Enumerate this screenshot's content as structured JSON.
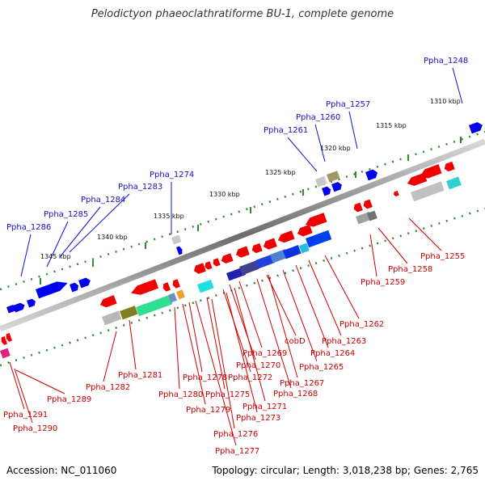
{
  "title": "Pelodictyon phaeoclathratiforme BU-1, complete genome",
  "accession_line": "Accession: NC_011060",
  "topology_line": "Topology: circular; Length: 3,018,238 bp; Genes: 2,765",
  "colors": {
    "backbone": "#7a7a7a",
    "dots": "#2e8b2e",
    "forward_label": "#1010cc",
    "reverse_label": "#cc0000",
    "forward_gene": "#0000ee",
    "reverse_gene": "#ee0000",
    "rna_gene": "#b0b0b0"
  },
  "kbp_labels": [
    "1310 kbp",
    "1315 kbp",
    "1320 kbp",
    "1325 kbp",
    "1330 kbp",
    "1335 kbp",
    "1340 kbp",
    "1345 kbp"
  ],
  "forward_labels": [
    "Ppha_1248",
    "Ppha_1257",
    "Ppha_1260",
    "Ppha_1261",
    "Ppha_1274",
    "Ppha_1283",
    "Ppha_1284",
    "Ppha_1285",
    "Ppha_1286"
  ],
  "reverse_labels": [
    "Ppha_1255",
    "Ppha_1258",
    "Ppha_1259",
    "Ppha_1262",
    "Ppha_1263",
    "Ppha_1264",
    "Ppha_1265",
    "Ppha_1267",
    "cobD",
    "Ppha_1268",
    "Ppha_1269",
    "Ppha_1270",
    "Ppha_1271",
    "Ppha_1272",
    "Ppha_1273",
    "Ppha_1275",
    "Ppha_1276",
    "Ppha_1277",
    "Ppha_1278",
    "Ppha_1279",
    "Ppha_1280",
    "Ppha_1281",
    "Ppha_1282",
    "Ppha_1289",
    "Ppha_1290",
    "Ppha_1291"
  ]
}
